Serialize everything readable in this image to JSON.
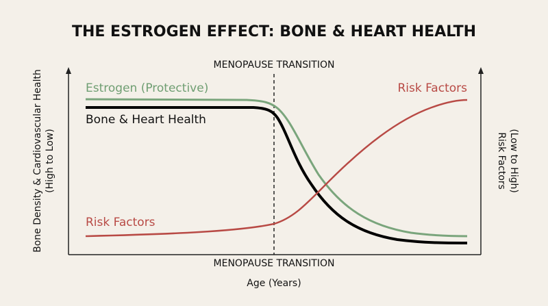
{
  "title": "THE ESTROGEN EFFECT: BONE & HEART HEALTH",
  "transition_label_top": "MENOPAUSE TRANSITION",
  "transition_label_bottom": "MENOPAUSE TRANSITION",
  "curves": [
    {
      "label": "Estrogen (Protective)"
    },
    {
      "label": "Bone & Heart Health"
    },
    {
      "label": "Risk Factors"
    },
    {
      "label": "Risk Factors"
    }
  ],
  "left_axis_label": [
    "Bone Density & Cardiovascular Health",
    "(High to Low)"
  ],
  "right_axis_label": [
    "Risk Factors",
    "(Low to High)"
  ],
  "x_axis_label": "Age (Years)"
}
